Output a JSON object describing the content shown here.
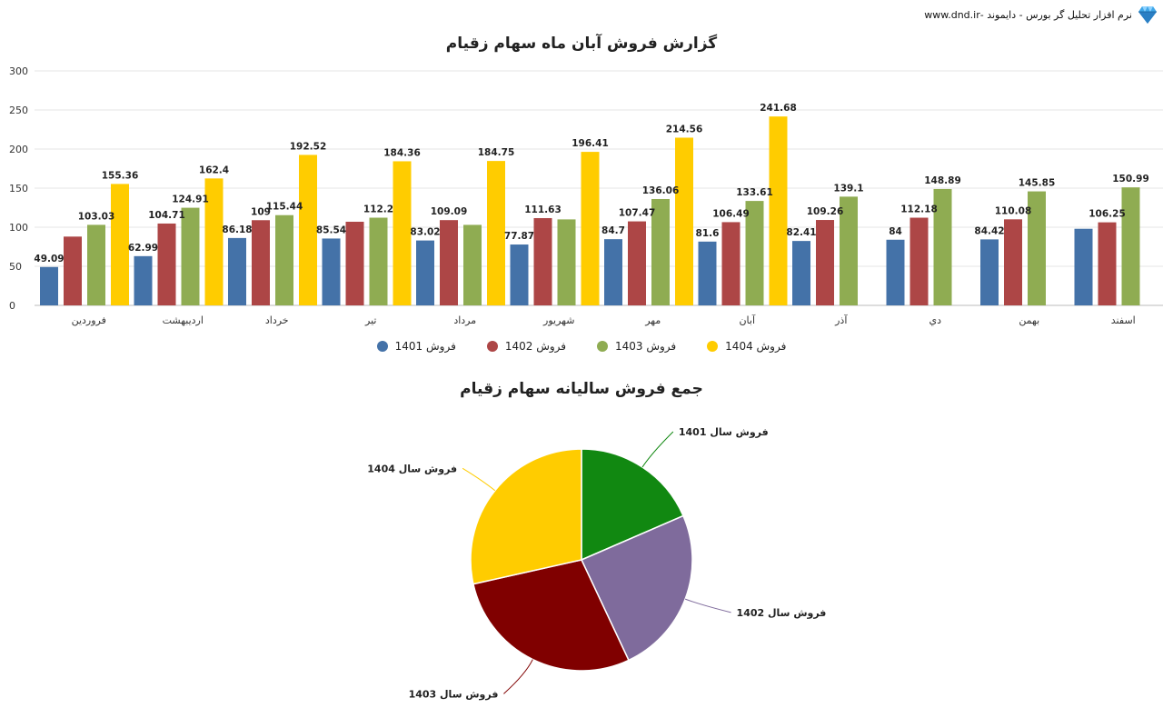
{
  "brand": {
    "text": "نرم افزار تحلیل گر بورس - دایموند -www.dnd.ir",
    "logo_icon": "diamond-icon"
  },
  "chart_data": [
    {
      "type": "bar",
      "title": "گزارش فروش آبان ماه سهام زقیام",
      "categories": [
        "فروردین",
        "اردیبهشت",
        "خرداد",
        "تیر",
        "مرداد",
        "شهریور",
        "مهر",
        "آبان",
        "آذر",
        "دي",
        "بهمن",
        "اسفند"
      ],
      "ylim": [
        0,
        300
      ],
      "yticks": [
        0,
        50,
        100,
        150,
        200,
        250,
        300
      ],
      "grid": true,
      "legend_position": "bottom",
      "series": [
        {
          "name": "فروش 1401",
          "color": "#4472a8",
          "values": [
            49.09,
            null,
            86.18,
            85.54,
            83.02,
            77.87,
            84.7,
            81.6,
            82.41,
            84,
            84.42,
            null
          ],
          "estimated_values": [
            49.09,
            62.99,
            86.18,
            85.54,
            83.02,
            77.87,
            84.7,
            81.6,
            82.41,
            84,
            84.42,
            98
          ]
        },
        {
          "name": "فروش 1402",
          "color": "#ad4646",
          "values": [
            null,
            104.71,
            109,
            null,
            109.09,
            111.63,
            107.47,
            106.49,
            109.26,
            112.18,
            110.08,
            106.25
          ],
          "estimated_values": [
            88,
            104.71,
            109,
            107,
            109.09,
            111.63,
            107.47,
            106.49,
            109.26,
            112.18,
            110.08,
            106.25
          ]
        },
        {
          "name": "فروش 1403",
          "color": "#8fac52",
          "values": [
            103.03,
            124.91,
            115.44,
            112.2,
            null,
            null,
            136.06,
            133.61,
            139.1,
            148.89,
            145.85,
            150.99
          ],
          "estimated_values": [
            103.03,
            124.91,
            115.44,
            112.2,
            103,
            110,
            136.06,
            133.61,
            139.1,
            148.89,
            145.85,
            150.99
          ]
        },
        {
          "name": "فروش 1404",
          "color": "#ffcc00",
          "values": [
            155.36,
            162.4,
            192.52,
            184.36,
            184.75,
            196.41,
            214.56,
            241.68,
            null,
            null,
            null,
            null
          ],
          "estimated_values": [
            155.36,
            162.4,
            192.52,
            184.36,
            184.75,
            196.41,
            214.56,
            241.68,
            null,
            null,
            null,
            null
          ]
        }
      ],
      "bar_labels": [
        {
          "cat": 0,
          "series": 0,
          "text": "49.09"
        },
        {
          "cat": 0,
          "series": 2,
          "text": "103.03"
        },
        {
          "cat": 0,
          "series": 3,
          "text": "155.36"
        },
        {
          "cat": 1,
          "series": 0,
          "text": "62.99"
        },
        {
          "cat": 1,
          "series": 1,
          "text": "104.71"
        },
        {
          "cat": 1,
          "series": 2,
          "text": "124.91"
        },
        {
          "cat": 1,
          "series": 3,
          "text": "162.4"
        },
        {
          "cat": 2,
          "series": 0,
          "text": "86.18"
        },
        {
          "cat": 2,
          "series": 1,
          "text": "109"
        },
        {
          "cat": 2,
          "series": 2,
          "text": "115.44"
        },
        {
          "cat": 2,
          "series": 3,
          "text": "192.52"
        },
        {
          "cat": 3,
          "series": 0,
          "text": "85.54"
        },
        {
          "cat": 3,
          "series": 2,
          "text": "112.2"
        },
        {
          "cat": 3,
          "series": 3,
          "text": "184.36"
        },
        {
          "cat": 4,
          "series": 0,
          "text": "83.02"
        },
        {
          "cat": 4,
          "series": 1,
          "text": "109.09"
        },
        {
          "cat": 4,
          "series": 3,
          "text": "184.75"
        },
        {
          "cat": 5,
          "series": 0,
          "text": "77.87"
        },
        {
          "cat": 5,
          "series": 1,
          "text": "111.63"
        },
        {
          "cat": 5,
          "series": 3,
          "text": "196.41"
        },
        {
          "cat": 6,
          "series": 0,
          "text": "84.7"
        },
        {
          "cat": 6,
          "series": 1,
          "text": "107.47"
        },
        {
          "cat": 6,
          "series": 2,
          "text": "136.06"
        },
        {
          "cat": 6,
          "series": 3,
          "text": "214.56"
        },
        {
          "cat": 7,
          "series": 0,
          "text": "81.6"
        },
        {
          "cat": 7,
          "series": 1,
          "text": "106.49"
        },
        {
          "cat": 7,
          "series": 2,
          "text": "133.61"
        },
        {
          "cat": 7,
          "series": 3,
          "text": "241.68"
        },
        {
          "cat": 8,
          "series": 0,
          "text": "82.41"
        },
        {
          "cat": 8,
          "series": 1,
          "text": "109.26"
        },
        {
          "cat": 8,
          "series": 2,
          "text": "139.1"
        },
        {
          "cat": 9,
          "series": 0,
          "text": "84"
        },
        {
          "cat": 9,
          "series": 1,
          "text": "112.18"
        },
        {
          "cat": 9,
          "series": 2,
          "text": "148.89"
        },
        {
          "cat": 10,
          "series": 0,
          "text": "84.42"
        },
        {
          "cat": 10,
          "series": 1,
          "text": "110.08"
        },
        {
          "cat": 10,
          "series": 2,
          "text": "145.85"
        },
        {
          "cat": 11,
          "series": 1,
          "text": "106.25"
        },
        {
          "cat": 11,
          "series": 2,
          "text": "150.99"
        }
      ]
    },
    {
      "type": "pie",
      "title": "جمع فروش سالیانه سهام زقیام",
      "slices": [
        {
          "label": "فروش سال 1401",
          "value": 18.5,
          "color": "#118811"
        },
        {
          "label": "فروش سال 1402",
          "value": 24.5,
          "color": "#7f6b9c"
        },
        {
          "label": "فروش سال 1403",
          "value": 28.5,
          "color": "#800000"
        },
        {
          "label": "فروش سال 1404",
          "value": 28.5,
          "color": "#ffcc00"
        }
      ]
    }
  ]
}
